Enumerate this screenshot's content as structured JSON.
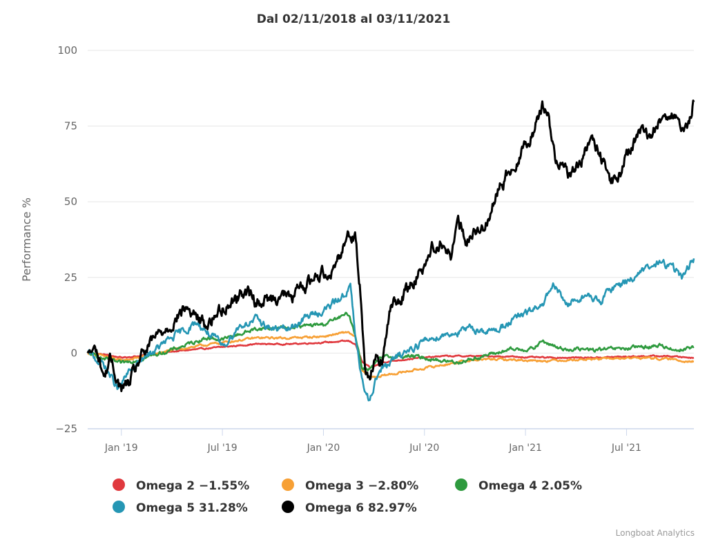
{
  "chart_data": {
    "type": "line",
    "title": "Dal 02/11/2018 al 03/11/2021",
    "xlabel": "",
    "ylabel": "Performance %",
    "ylim": [
      -25,
      100
    ],
    "yticks": [
      100,
      75,
      50,
      25,
      0,
      -25
    ],
    "ytick_labels": [
      "100",
      "75",
      "50",
      "25",
      "0",
      "−25"
    ],
    "x_range_months": [
      0,
      36
    ],
    "x_unit": "months since 02/11/2018",
    "xticks": [
      {
        "label": "Jan '19",
        "month": 2
      },
      {
        "label": "Jul '19",
        "month": 8
      },
      {
        "label": "Jan '20",
        "month": 14
      },
      {
        "label": "Jul '20",
        "month": 20
      },
      {
        "label": "Jan '21",
        "month": 26
      },
      {
        "label": "Jul '21",
        "month": 32
      }
    ],
    "grid": true,
    "legend_position": "bottom",
    "series": [
      {
        "name": "Omega 2",
        "legend_label": "Omega 2 −1.55%",
        "final_value": -1.55,
        "color": "#e0393e",
        "x": [
          0,
          1,
          2,
          3,
          5,
          8,
          10,
          12,
          14,
          15.5,
          15.9,
          16.3,
          16.8,
          17.5,
          19,
          21,
          24,
          27,
          30,
          33,
          34.5,
          36
        ],
        "y": [
          0,
          -0.5,
          -1.5,
          -1,
          0.5,
          2,
          3,
          3,
          3.5,
          4,
          3,
          -3,
          -5,
          -3,
          -2,
          -1,
          -1,
          -1.5,
          -1.5,
          -1,
          -1,
          -1.55
        ]
      },
      {
        "name": "Omega 3",
        "legend_label": "Omega 3 −2.80%",
        "final_value": -2.8,
        "color": "#f7a035",
        "x": [
          0,
          1,
          2,
          3,
          5,
          8,
          10,
          12,
          14,
          15.5,
          15.9,
          16.3,
          16.8,
          17.5,
          19,
          21,
          22.5,
          24,
          27,
          30,
          33,
          34.5,
          36
        ],
        "y": [
          0,
          -1,
          -2.5,
          -1.5,
          1,
          3.5,
          5,
          5,
          5.5,
          7,
          5,
          -6,
          -8,
          -7.5,
          -6,
          -4,
          -2.5,
          -2,
          -2.5,
          -2,
          -1.5,
          -2,
          -2.8
        ]
      },
      {
        "name": "Omega 4",
        "legend_label": "Omega 4 2.05%",
        "final_value": 2.05,
        "color": "#2e9a3e",
        "x": [
          0,
          1,
          2,
          3,
          5,
          7,
          8,
          10,
          12,
          14,
          15.5,
          15.9,
          16.3,
          16.8,
          17.5,
          19,
          20,
          21,
          22,
          23.5,
          25,
          26.5,
          27,
          28,
          30,
          32,
          34,
          35,
          36
        ],
        "y": [
          0,
          -2,
          -3.5,
          -2,
          1,
          5,
          4.5,
          8,
          8.5,
          9.5,
          13,
          6,
          -5,
          -5,
          -1.5,
          -1,
          -1.5,
          -2.5,
          -3,
          -1,
          1,
          1.5,
          4,
          1.5,
          1,
          1.5,
          2.5,
          1,
          2.05
        ]
      },
      {
        "name": "Omega 5",
        "legend_label": "Omega 5 31.28%",
        "final_value": 31.28,
        "color": "#2596b4",
        "x": [
          0,
          1,
          1.8,
          2.5,
          3.5,
          5,
          6.5,
          7.5,
          8,
          9,
          10,
          11,
          12,
          13,
          14,
          15,
          15.6,
          15.9,
          16.3,
          16.7,
          17.3,
          18,
          19,
          20,
          21,
          22,
          23,
          24,
          25,
          26,
          27,
          27.7,
          28.5,
          29.5,
          30.5,
          31,
          32,
          33,
          34,
          34.8,
          35.3,
          36
        ],
        "y": [
          0,
          -4,
          -12,
          -6,
          -1,
          5,
          10,
          5,
          2,
          9,
          11,
          8,
          8,
          12,
          14,
          18,
          22,
          5,
          -10,
          -15,
          -6,
          -3,
          1,
          4,
          6,
          7,
          8,
          7,
          10,
          13,
          16,
          22,
          16,
          19,
          17,
          21,
          24,
          27,
          30,
          28,
          25,
          31.28
        ]
      },
      {
        "name": "Omega 6",
        "legend_label": "Omega 6 82.97%",
        "final_value": 82.97,
        "color": "#000000",
        "x": [
          0,
          0.5,
          1,
          1.3,
          2,
          2.5,
          3,
          4,
          5,
          5.8,
          6.5,
          7,
          8,
          9,
          9.3,
          10,
          11,
          11.5,
          12,
          13,
          14,
          14.5,
          15,
          15.5,
          15.9,
          16.2,
          16.5,
          16.8,
          17.1,
          17.5,
          18,
          19,
          19.5,
          20,
          20.5,
          21,
          21.6,
          22,
          22.5,
          23,
          23.3,
          23.8,
          24.5,
          25,
          25.6,
          26.2,
          26.6,
          27,
          27.4,
          27.8,
          28.2,
          28.6,
          29.2,
          29.8,
          30.4,
          31,
          31.5,
          32,
          32.5,
          33,
          33.5,
          34,
          34.5,
          34.9,
          35.3,
          35.7,
          36
        ],
        "y": [
          0,
          1,
          -8,
          -2,
          -12,
          -10,
          -3,
          5,
          10,
          15,
          12,
          9,
          15,
          19,
          21,
          17,
          18,
          20,
          18,
          23,
          27,
          27,
          33,
          40,
          38,
          20,
          -5,
          -8,
          0,
          -3,
          15,
          21,
          25,
          30,
          35,
          37,
          32,
          43,
          36,
          42,
          38,
          46,
          55,
          60,
          65,
          71,
          75,
          82,
          78,
          62,
          65,
          59,
          62,
          70,
          66,
          58,
          56,
          66,
          70,
          73,
          72,
          77,
          80,
          78,
          71,
          76,
          82.97
        ]
      }
    ]
  },
  "credits": "Longboat Analytics"
}
